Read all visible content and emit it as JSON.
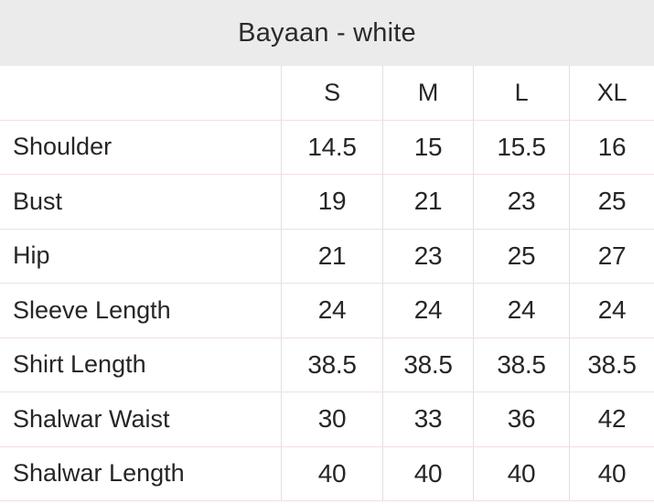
{
  "chart_data": {
    "type": "table",
    "title": "Bayaan - white",
    "columns": [
      "S",
      "M",
      "L",
      "XL"
    ],
    "rows": [
      {
        "label": "Shoulder",
        "values": [
          "14.5",
          "15",
          "15.5",
          "16"
        ]
      },
      {
        "label": "Bust",
        "values": [
          "19",
          "21",
          "23",
          "25"
        ]
      },
      {
        "label": "Hip",
        "values": [
          "21",
          "23",
          "25",
          "27"
        ]
      },
      {
        "label": "Sleeve Length",
        "values": [
          "24",
          "24",
          "24",
          "24"
        ]
      },
      {
        "label": "Shirt Length",
        "values": [
          "38.5",
          "38.5",
          "38.5",
          "38.5"
        ]
      },
      {
        "label": "Shalwar Waist",
        "values": [
          "30",
          "33",
          "36",
          "42"
        ]
      },
      {
        "label": "Shalwar Length",
        "values": [
          "40",
          "40",
          "40",
          "40"
        ]
      }
    ],
    "layout": {
      "title_position": "top-center",
      "grid": "light horizontal and vertical rules",
      "label_column_align": "left",
      "value_align": "center"
    }
  },
  "colors": {
    "title_band_bg": "#ebebeb",
    "row_border": "#f0e0e0",
    "column_border": "#e2dfe4",
    "text": "#262626",
    "page_bg": "#ffffff"
  }
}
